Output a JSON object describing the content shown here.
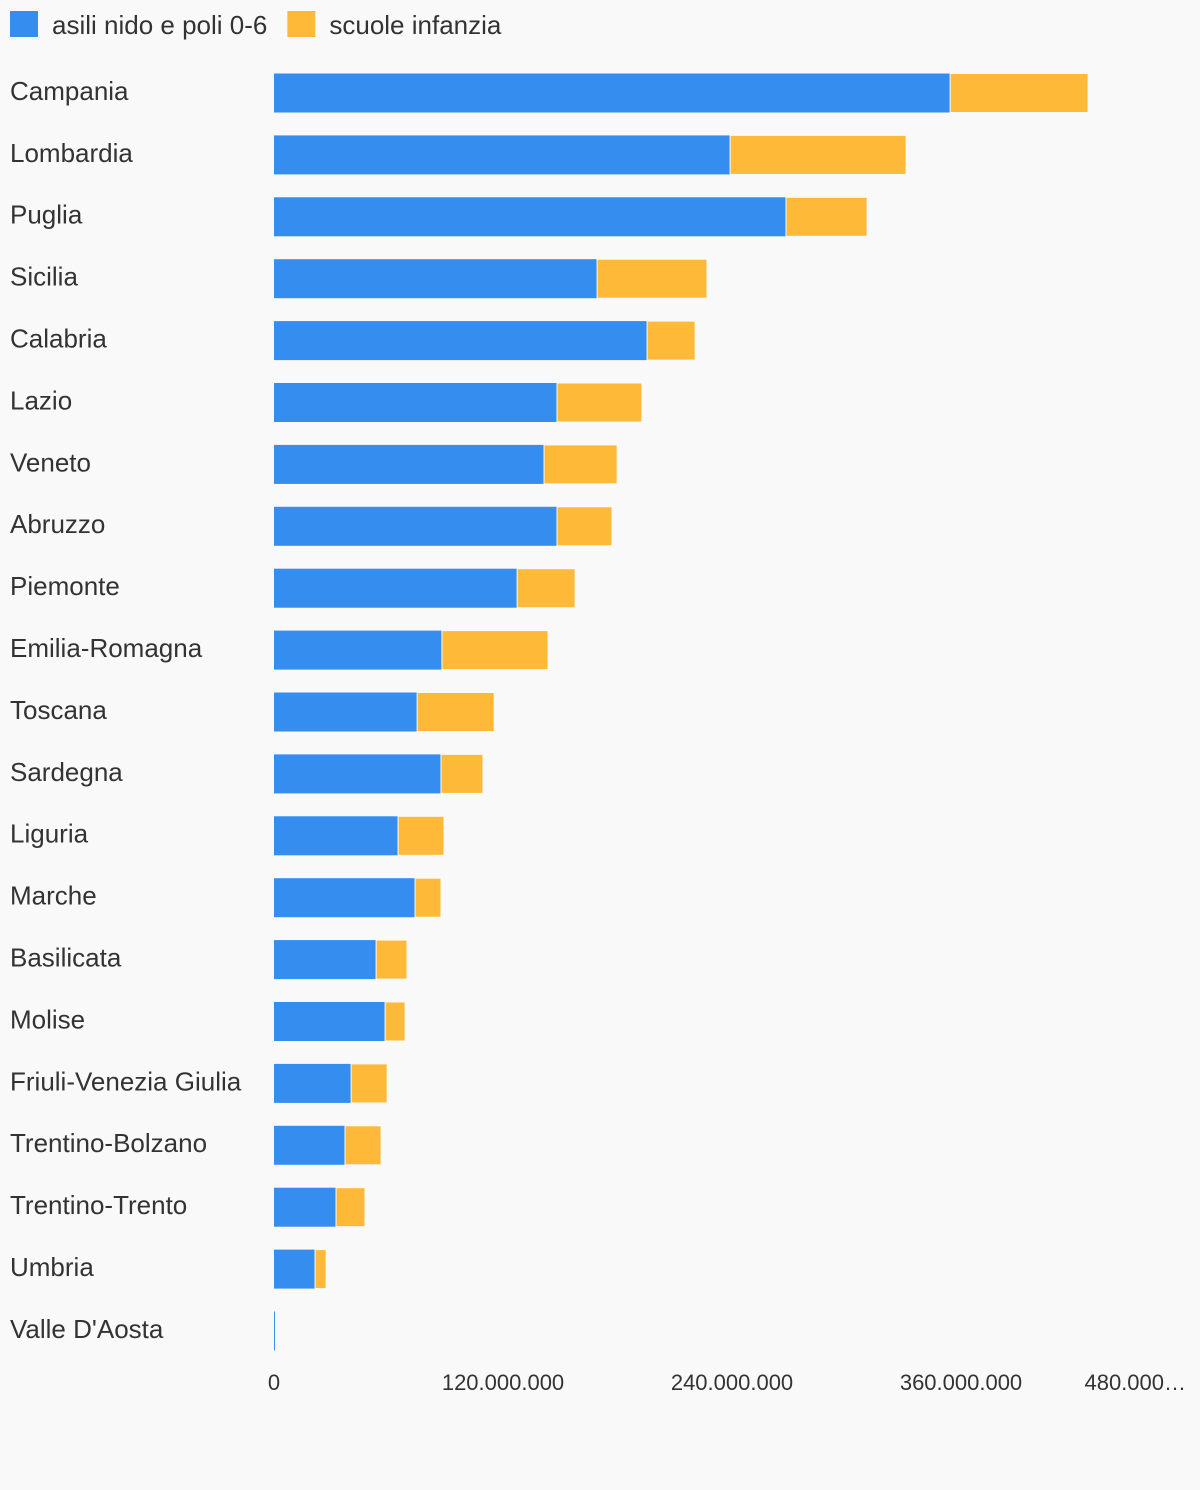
{
  "chart_data": {
    "type": "bar",
    "orientation": "horizontal",
    "stacked": true,
    "categories": [
      "Campania",
      "Lombardia",
      "Puglia",
      "Sicilia",
      "Calabria",
      "Lazio",
      "Veneto",
      "Abruzzo",
      "Piemonte",
      "Emilia-Romagna",
      "Toscana",
      "Sardegna",
      "Liguria",
      "Marche",
      "Basilicata",
      "Molise",
      "Friuli-Venezia Giulia",
      "Trentino-Bolzano",
      "Trentino-Trento",
      "Umbria",
      "Valle D'Aosta"
    ],
    "series": [
      {
        "name": "asili nido e poli 0-6",
        "color": "#348def",
        "values": [
          354300000,
          239000000,
          268300000,
          169300000,
          195500000,
          148300000,
          141500000,
          148300000,
          127400000,
          88000000,
          75000000,
          87500000,
          65000000,
          73900000,
          53500000,
          58200000,
          40400000,
          37200000,
          32500000,
          21500000,
          500000
        ]
      },
      {
        "name": "scuole infanzia",
        "color": "#feb938",
        "values": [
          72300000,
          92200000,
          42500000,
          57600000,
          25200000,
          44500000,
          38300000,
          28800000,
          30400000,
          55600000,
          40400000,
          22000000,
          24100000,
          13600000,
          16200000,
          10500000,
          18900000,
          18900000,
          15200000,
          5800000,
          0
        ]
      }
    ],
    "xlim": [
      0,
      480000000
    ],
    "xticks": [
      0,
      {
        "value": 120000000,
        "label": "120.000.000"
      },
      {
        "value": 240000000,
        "label": "240.000.000"
      },
      {
        "value": 360000000,
        "label": "360.000.000"
      },
      {
        "value": 480000000,
        "label": "480.000…"
      }
    ],
    "legend": "top-left"
  }
}
